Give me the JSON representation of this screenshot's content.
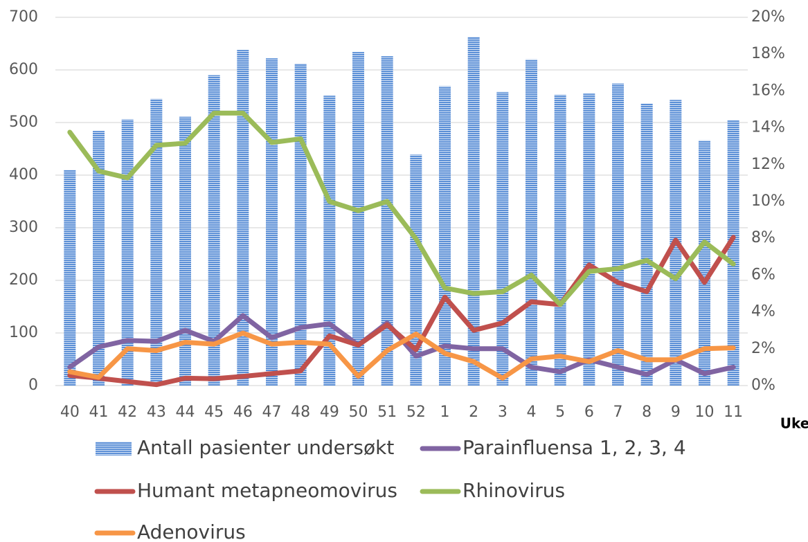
{
  "chart_data": {
    "type": "bar",
    "x_label": "Uke",
    "categories": [
      "40",
      "41",
      "42",
      "43",
      "44",
      "45",
      "46",
      "47",
      "48",
      "49",
      "50",
      "51",
      "52",
      "1",
      "2",
      "3",
      "4",
      "5",
      "6",
      "7",
      "8",
      "9",
      "10",
      "11"
    ],
    "ylim": [
      0,
      700
    ],
    "yticks": [
      0,
      100,
      200,
      300,
      400,
      500,
      600,
      700
    ],
    "y2lim": [
      0,
      20
    ],
    "y2ticks": [
      {
        "value": 0,
        "label": "0%"
      },
      {
        "value": 2,
        "label": "2%"
      },
      {
        "value": 4,
        "label": "4%"
      },
      {
        "value": 6,
        "label": "6%"
      },
      {
        "value": 8,
        "label": "8%"
      },
      {
        "value": 10,
        "label": "10%"
      },
      {
        "value": 12,
        "label": "12%"
      },
      {
        "value": 14,
        "label": "14%"
      },
      {
        "value": 16,
        "label": "16%"
      },
      {
        "value": 18,
        "label": "18%"
      },
      {
        "value": 20,
        "label": "20%"
      }
    ],
    "grid": true,
    "legend": "bottom",
    "series": [
      {
        "name": "Antall pasienter undersøkt",
        "type": "bar",
        "color": "#5b8fd6",
        "values": [
          410,
          484,
          506,
          545,
          511,
          590,
          638,
          622,
          612,
          551,
          634,
          626,
          439,
          569,
          663,
          558,
          620,
          553,
          555,
          574,
          536,
          543,
          466,
          504
        ]
      },
      {
        "name": "Parainfluensa 1, 2, 3, 4",
        "type": "line",
        "axis": "y2",
        "color": "#8064a2",
        "values": [
          1.0,
          2.1,
          2.45,
          2.4,
          3.0,
          2.4,
          3.8,
          2.6,
          3.15,
          3.35,
          2.2,
          3.4,
          1.6,
          2.15,
          2.0,
          2.0,
          1.0,
          0.75,
          1.4,
          1.0,
          0.6,
          1.4,
          0.65,
          1.0
        ]
      },
      {
        "name": "Humant metapneomovirus",
        "type": "line",
        "axis": "y2",
        "color": "#c0504d",
        "values": [
          0.55,
          0.4,
          0.22,
          0.05,
          0.4,
          0.37,
          0.5,
          0.65,
          0.8,
          2.7,
          2.2,
          3.3,
          1.95,
          4.8,
          3.0,
          3.4,
          4.55,
          4.4,
          6.55,
          5.6,
          5.1,
          7.9,
          5.6,
          8.05
        ]
      },
      {
        "name": "Rhinovirus",
        "type": "line",
        "axis": "y2",
        "color": "#9bbb59",
        "values": [
          13.76,
          11.65,
          11.28,
          13.05,
          13.16,
          14.8,
          14.8,
          13.2,
          13.4,
          10.0,
          9.5,
          10.0,
          7.97,
          5.3,
          5.0,
          5.1,
          6.0,
          4.4,
          6.2,
          6.35,
          6.8,
          5.8,
          7.8,
          6.6
        ]
      },
      {
        "name": "Adenovirus",
        "type": "line",
        "axis": "y2",
        "color": "#f79646",
        "values": [
          0.75,
          0.45,
          2.0,
          1.9,
          2.35,
          2.25,
          2.85,
          2.25,
          2.35,
          2.25,
          0.5,
          1.9,
          2.8,
          1.75,
          1.3,
          0.4,
          1.45,
          1.6,
          1.3,
          1.9,
          1.4,
          1.4,
          2.0,
          2.05
        ]
      }
    ]
  }
}
